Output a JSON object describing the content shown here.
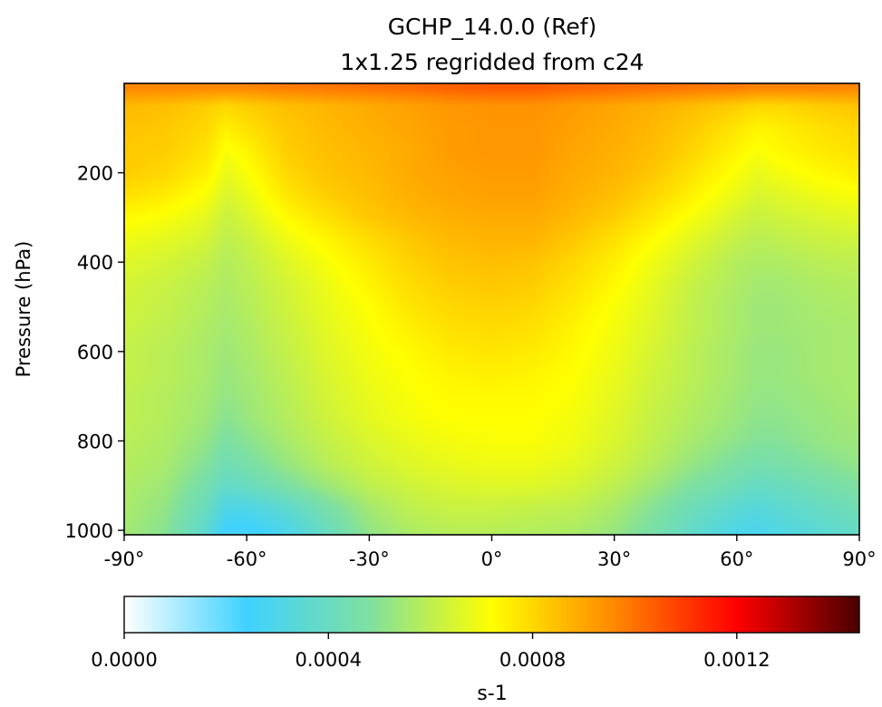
{
  "chart_data": {
    "type": "heatmap",
    "title_line1": "GCHP_14.0.0 (Ref)",
    "title_line2": "1x1.25 regridded from c24",
    "ylabel": "Pressure (hPa)",
    "xlabel": "",
    "x_ticks": [
      "-90°",
      "-60°",
      "-30°",
      "0°",
      "30°",
      "60°",
      "90°"
    ],
    "x_tick_values": [
      -90,
      -60,
      -30,
      0,
      30,
      60,
      90
    ],
    "y_ticks": [
      "200",
      "400",
      "600",
      "800",
      "1000"
    ],
    "y_tick_values": [
      200,
      400,
      600,
      800,
      1000
    ],
    "xlim": [
      -90,
      90
    ],
    "ylim": [
      1010,
      0
    ],
    "colorbar": {
      "label": "s-1",
      "range": [
        0,
        0.00144
      ],
      "ticks": [
        "0.0000",
        "0.0004",
        "0.0008",
        "0.0012"
      ],
      "tick_values": [
        0,
        0.0004,
        0.0008,
        0.0012
      ],
      "colormap": [
        "#ffffff",
        "#3fd2ff",
        "#7fe0a0",
        "#ffff00",
        "#ff8800",
        "#ff0000",
        "#4a0000"
      ]
    },
    "field": {
      "latitudes": [
        -90,
        -80,
        -70,
        -65,
        -60,
        -50,
        -40,
        -30,
        -20,
        -10,
        0,
        10,
        20,
        30,
        40,
        50,
        60,
        65,
        70,
        80,
        90
      ],
      "pressures": [
        10,
        50,
        100,
        150,
        200,
        250,
        300,
        350,
        400,
        450,
        500,
        550,
        600,
        650,
        700,
        750,
        800,
        850,
        900,
        950,
        1000,
        1010
      ],
      "values": [
        [
          0.00096,
          0.00096,
          0.00096,
          0.00096,
          0.00096,
          0.00098,
          0.00099,
          0.001,
          0.00101,
          0.00103,
          0.00104,
          0.00104,
          0.00102,
          0.00101,
          0.001,
          0.00099,
          0.00098,
          0.00097,
          0.00097,
          0.00097,
          0.00096
        ],
        [
          0.00086,
          0.00085,
          0.00082,
          0.0008,
          0.00082,
          0.00085,
          0.00087,
          0.00089,
          0.00091,
          0.00093,
          0.00094,
          0.00094,
          0.00092,
          0.0009,
          0.00088,
          0.00085,
          0.00082,
          0.0008,
          0.0008,
          0.00082,
          0.00084
        ],
        [
          0.00084,
          0.00083,
          0.0008,
          0.00075,
          0.00078,
          0.00083,
          0.00086,
          0.00088,
          0.0009,
          0.00092,
          0.00093,
          0.00093,
          0.00091,
          0.00089,
          0.00086,
          0.00082,
          0.00077,
          0.00074,
          0.00075,
          0.00078,
          0.0008
        ],
        [
          0.00083,
          0.00082,
          0.00078,
          0.00071,
          0.00074,
          0.00082,
          0.00085,
          0.00087,
          0.00089,
          0.00092,
          0.00093,
          0.00093,
          0.0009,
          0.00088,
          0.00085,
          0.0008,
          0.00074,
          0.00071,
          0.00073,
          0.00076,
          0.00078
        ],
        [
          0.00082,
          0.0008,
          0.00075,
          0.00068,
          0.00071,
          0.0008,
          0.00084,
          0.00086,
          0.00089,
          0.00091,
          0.00092,
          0.00092,
          0.00089,
          0.00087,
          0.00083,
          0.00077,
          0.00071,
          0.00068,
          0.0007,
          0.00073,
          0.00075
        ],
        [
          0.00078,
          0.00076,
          0.00071,
          0.00065,
          0.00068,
          0.00077,
          0.00082,
          0.00085,
          0.00088,
          0.0009,
          0.00091,
          0.00091,
          0.00088,
          0.00085,
          0.0008,
          0.00074,
          0.00068,
          0.00065,
          0.00066,
          0.00069,
          0.00071
        ],
        [
          0.00073,
          0.00071,
          0.00067,
          0.00062,
          0.00065,
          0.00073,
          0.00078,
          0.00083,
          0.00086,
          0.00088,
          0.00089,
          0.00089,
          0.00086,
          0.00082,
          0.00076,
          0.0007,
          0.00064,
          0.00062,
          0.00063,
          0.00065,
          0.00067
        ],
        [
          0.00069,
          0.00067,
          0.00064,
          0.0006,
          0.00062,
          0.00069,
          0.00074,
          0.00079,
          0.00083,
          0.00086,
          0.00087,
          0.00087,
          0.00083,
          0.00078,
          0.00072,
          0.00066,
          0.00061,
          0.00059,
          0.0006,
          0.00062,
          0.00063
        ],
        [
          0.00066,
          0.00064,
          0.00061,
          0.00058,
          0.0006,
          0.00066,
          0.00071,
          0.00076,
          0.00081,
          0.00084,
          0.00085,
          0.00084,
          0.0008,
          0.00075,
          0.00069,
          0.00063,
          0.00058,
          0.00057,
          0.00057,
          0.00059,
          0.0006
        ],
        [
          0.00064,
          0.00062,
          0.00059,
          0.00057,
          0.00059,
          0.00064,
          0.00069,
          0.00074,
          0.00079,
          0.00082,
          0.00083,
          0.00082,
          0.00078,
          0.00073,
          0.00067,
          0.00061,
          0.00057,
          0.00055,
          0.00055,
          0.00057,
          0.00058
        ],
        [
          0.00063,
          0.00061,
          0.00058,
          0.00056,
          0.00058,
          0.00063,
          0.00068,
          0.00072,
          0.00077,
          0.0008,
          0.00081,
          0.0008,
          0.00076,
          0.00071,
          0.00066,
          0.0006,
          0.00056,
          0.00054,
          0.00054,
          0.00056,
          0.00057
        ],
        [
          0.00062,
          0.0006,
          0.00057,
          0.00055,
          0.00057,
          0.00062,
          0.00067,
          0.00071,
          0.00075,
          0.00078,
          0.00079,
          0.00078,
          0.00074,
          0.0007,
          0.00065,
          0.0006,
          0.00056,
          0.00054,
          0.00054,
          0.00055,
          0.00056
        ],
        [
          0.00061,
          0.00059,
          0.00056,
          0.00054,
          0.00056,
          0.00061,
          0.00066,
          0.0007,
          0.00073,
          0.00076,
          0.00077,
          0.00076,
          0.00073,
          0.00069,
          0.00064,
          0.00059,
          0.00055,
          0.00053,
          0.00053,
          0.00055,
          0.00056
        ],
        [
          0.00061,
          0.00059,
          0.00056,
          0.00053,
          0.00055,
          0.0006,
          0.00065,
          0.00069,
          0.00072,
          0.00074,
          0.00075,
          0.00074,
          0.00072,
          0.00068,
          0.00063,
          0.00059,
          0.00055,
          0.00053,
          0.00053,
          0.00055,
          0.00056
        ],
        [
          0.0006,
          0.00058,
          0.00055,
          0.00052,
          0.00054,
          0.00059,
          0.00064,
          0.00068,
          0.00071,
          0.00073,
          0.00073,
          0.00073,
          0.00071,
          0.00067,
          0.00062,
          0.00058,
          0.00054,
          0.00052,
          0.00052,
          0.00054,
          0.00056
        ],
        [
          0.0006,
          0.00058,
          0.00054,
          0.0005,
          0.00053,
          0.00058,
          0.00063,
          0.00067,
          0.0007,
          0.00072,
          0.00072,
          0.00072,
          0.0007,
          0.00066,
          0.00061,
          0.00057,
          0.00053,
          0.00051,
          0.00051,
          0.00053,
          0.00055
        ],
        [
          0.00059,
          0.00057,
          0.00052,
          0.00047,
          0.0005,
          0.00056,
          0.00061,
          0.00065,
          0.00068,
          0.0007,
          0.00071,
          0.00071,
          0.00069,
          0.00065,
          0.0006,
          0.00055,
          0.00051,
          0.00049,
          0.00049,
          0.00052,
          0.00054
        ],
        [
          0.00058,
          0.00056,
          0.00049,
          0.00043,
          0.00046,
          0.00053,
          0.00059,
          0.00063,
          0.00066,
          0.00068,
          0.00069,
          0.00069,
          0.00067,
          0.00063,
          0.00058,
          0.00052,
          0.00047,
          0.00045,
          0.00046,
          0.00049,
          0.00052
        ],
        [
          0.00057,
          0.00054,
          0.00045,
          0.00038,
          0.0004,
          0.00047,
          0.00054,
          0.0006,
          0.00063,
          0.00065,
          0.00066,
          0.00066,
          0.00064,
          0.0006,
          0.00054,
          0.00047,
          0.00042,
          0.00039,
          0.0004,
          0.00044,
          0.00048
        ],
        [
          0.00056,
          0.00052,
          0.0004,
          0.0003,
          0.0003,
          0.00036,
          0.00046,
          0.00055,
          0.0006,
          0.00062,
          0.00062,
          0.00061,
          0.0006,
          0.00056,
          0.00049,
          0.00041,
          0.00035,
          0.00033,
          0.00035,
          0.00039,
          0.00043
        ],
        [
          0.00055,
          0.0005,
          0.00036,
          0.00024,
          0.00023,
          0.0003,
          0.00041,
          0.00052,
          0.00057,
          0.00059,
          0.00059,
          0.00058,
          0.00057,
          0.00053,
          0.00046,
          0.00037,
          0.0003,
          0.00029,
          0.00031,
          0.00035,
          0.00039
        ],
        [
          0.00055,
          0.0005,
          0.00035,
          0.00023,
          0.00022,
          0.00029,
          0.0004,
          0.00051,
          0.00056,
          0.00058,
          0.00058,
          0.00057,
          0.00056,
          0.00052,
          0.00045,
          0.00036,
          0.00029,
          0.00028,
          0.0003,
          0.00034,
          0.00038
        ]
      ]
    }
  }
}
